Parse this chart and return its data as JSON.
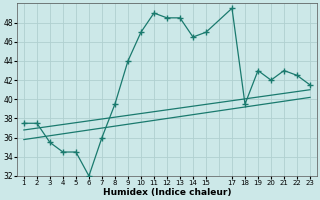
{
  "xlabel": "Humidex (Indice chaleur)",
  "ylabel": "",
  "bg_color": "#cce8e8",
  "grid_color": "#b0d0d0",
  "line_color": "#1a7a6e",
  "xlim": [
    0.5,
    23.5
  ],
  "ylim": [
    32,
    50
  ],
  "xtick_vals": [
    1,
    2,
    3,
    4,
    5,
    6,
    7,
    8,
    9,
    10,
    11,
    12,
    13,
    14,
    15,
    17,
    18,
    19,
    20,
    21,
    22,
    23
  ],
  "xtick_labels": [
    "1",
    "2",
    "3",
    "4",
    "5",
    "6",
    "7",
    "8",
    "9",
    "10",
    "11",
    "12",
    "13",
    "14",
    "15",
    "17",
    "18",
    "19",
    "20",
    "21",
    "22",
    "23"
  ],
  "yticks": [
    32,
    34,
    36,
    38,
    40,
    42,
    44,
    46,
    48
  ],
  "main_x": [
    1,
    2,
    3,
    4,
    5,
    6,
    7,
    8,
    9,
    10,
    11,
    12,
    13,
    14,
    15,
    17,
    18,
    19,
    20,
    21,
    22,
    23
  ],
  "main_y": [
    37.5,
    37.5,
    35.5,
    34.5,
    34.5,
    32.0,
    36.0,
    39.5,
    44.0,
    47.0,
    49.0,
    48.5,
    48.5,
    46.5,
    47.0,
    49.5,
    39.5,
    43.0,
    42.0,
    43.0,
    42.5,
    41.5
  ],
  "trend1_x": [
    1,
    23
  ],
  "trend1_y": [
    35.8,
    40.2
  ],
  "trend2_x": [
    1,
    23
  ],
  "trend2_y": [
    36.8,
    41.0
  ]
}
